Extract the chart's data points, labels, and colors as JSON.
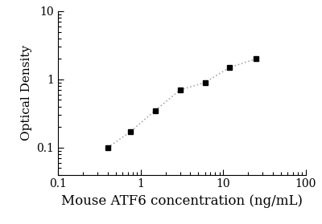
{
  "x": [
    0.4,
    0.75,
    1.5,
    3.0,
    6.0,
    12.0,
    25.0
  ],
  "y": [
    0.1,
    0.17,
    0.35,
    0.7,
    0.9,
    1.5,
    2.0
  ],
  "xlabel": "Mouse ATF6 concentration (ng/mL)",
  "ylabel": "Optical Density",
  "xlim": [
    0.1,
    100
  ],
  "ylim": [
    0.04,
    10
  ],
  "xticks": [
    0.1,
    1,
    10,
    100
  ],
  "xtick_labels": [
    "0.1",
    "1",
    "10",
    "100"
  ],
  "yticks": [
    0.1,
    1,
    10
  ],
  "ytick_labels": [
    "0.1",
    "1",
    "10"
  ],
  "marker": "s",
  "marker_color": "black",
  "marker_size": 5,
  "line_color": "#aaaaaa",
  "line_style": "dotted",
  "line_width": 1.2,
  "bg_color": "#ffffff",
  "xlabel_fontsize": 12,
  "ylabel_fontsize": 11,
  "tick_fontsize": 10,
  "font_family": "serif"
}
